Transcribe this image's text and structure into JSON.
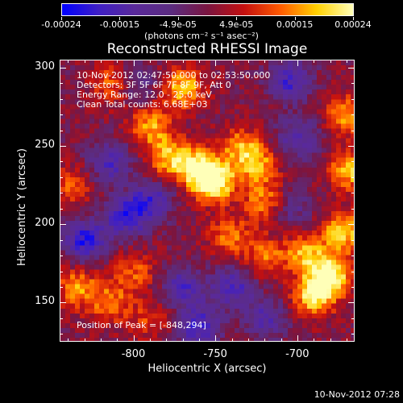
{
  "colorbar": {
    "labels": [
      "-0.00024",
      "-0.00015",
      "-4.9e-05",
      "4.9e-05",
      "0.00015",
      "0.00024"
    ],
    "units": "(photons cm⁻² s⁻¹ asec⁻²)",
    "colormap": [
      "#0000ff",
      "#3f1fc4",
      "#5a2a9a",
      "#5b2c80",
      "#7a1540",
      "#c41010",
      "#ff5a00",
      "#ffd000",
      "#ffffb8"
    ]
  },
  "title": "Reconstructed RHESSI Image",
  "info_lines": [
    "10-Nov-2012 02:47:50.000 to 02:53:50.000",
    "Detectors: 3F 5F 6F 7F 8F 9F, Att 0",
    "Energy Range: 12.0 - 25.0 keV",
    "Clean     Total counts: 6.68E+03"
  ],
  "peak_text": "Position of Peak = [-848,294]",
  "axes": {
    "xlabel": "Heliocentric X (arcsec)",
    "ylabel": "Heliocentric Y (arcsec)",
    "xticks": [
      "-800",
      "-750",
      "-700"
    ],
    "yticks": [
      "300",
      "250",
      "200",
      "150"
    ],
    "xlim": [
      -845,
      -665
    ],
    "ylim": [
      125,
      305
    ]
  },
  "timestamp": "10-Nov-2012 07:28",
  "chart_data": {
    "type": "heatmap",
    "title": "Reconstructed RHESSI Image",
    "xlabel": "Heliocentric X (arcsec)",
    "ylabel": "Heliocentric Y (arcsec)",
    "xlim": [
      -845,
      -665
    ],
    "ylim": [
      125,
      305
    ],
    "value_range": [
      -0.00024,
      0.00024
    ],
    "peak": [
      -848,
      294
    ],
    "hotspots": [
      {
        "x": -751,
        "y": 227,
        "v": 0.00024
      },
      {
        "x": -760,
        "y": 236,
        "v": 0.00021
      },
      {
        "x": -778,
        "y": 243,
        "v": 0.00018
      },
      {
        "x": -770,
        "y": 287,
        "v": 0.00019
      },
      {
        "x": -790,
        "y": 263,
        "v": 0.00016
      },
      {
        "x": -812,
        "y": 290,
        "v": 0.00015
      },
      {
        "x": -735,
        "y": 250,
        "v": 0.00014
      },
      {
        "x": -725,
        "y": 238,
        "v": 0.00016
      },
      {
        "x": -720,
        "y": 214,
        "v": 0.00015
      },
      {
        "x": -742,
        "y": 193,
        "v": 0.00013
      },
      {
        "x": -720,
        "y": 180,
        "v": 0.00012
      },
      {
        "x": -690,
        "y": 155,
        "v": 0.00022
      },
      {
        "x": -680,
        "y": 168,
        "v": 0.00023
      },
      {
        "x": -672,
        "y": 196,
        "v": 0.0002
      },
      {
        "x": -668,
        "y": 235,
        "v": 0.00019
      },
      {
        "x": -670,
        "y": 270,
        "v": 0.00016
      },
      {
        "x": -695,
        "y": 182,
        "v": 0.00017
      },
      {
        "x": -835,
        "y": 160,
        "v": 0.00015
      },
      {
        "x": -815,
        "y": 150,
        "v": 0.00013
      },
      {
        "x": -800,
        "y": 170,
        "v": 0.00011
      },
      {
        "x": -838,
        "y": 225,
        "v": 0.0001
      },
      {
        "x": -790,
        "y": 140,
        "v": 9e-05
      }
    ],
    "coldspots": [
      {
        "x": -830,
        "y": 190,
        "v": -0.0002
      },
      {
        "x": -805,
        "y": 205,
        "v": -0.00018
      },
      {
        "x": -790,
        "y": 215,
        "v": -0.00016
      },
      {
        "x": -770,
        "y": 160,
        "v": -0.00015
      },
      {
        "x": -760,
        "y": 135,
        "v": -0.00018
      },
      {
        "x": -705,
        "y": 292,
        "v": -0.00017
      },
      {
        "x": -700,
        "y": 255,
        "v": -0.00014
      },
      {
        "x": -740,
        "y": 160,
        "v": -0.00016
      },
      {
        "x": -815,
        "y": 240,
        "v": -0.00015
      },
      {
        "x": -800,
        "y": 290,
        "v": -0.00012
      },
      {
        "x": -720,
        "y": 140,
        "v": -0.00013
      },
      {
        "x": -705,
        "y": 210,
        "v": -0.0001
      }
    ]
  }
}
